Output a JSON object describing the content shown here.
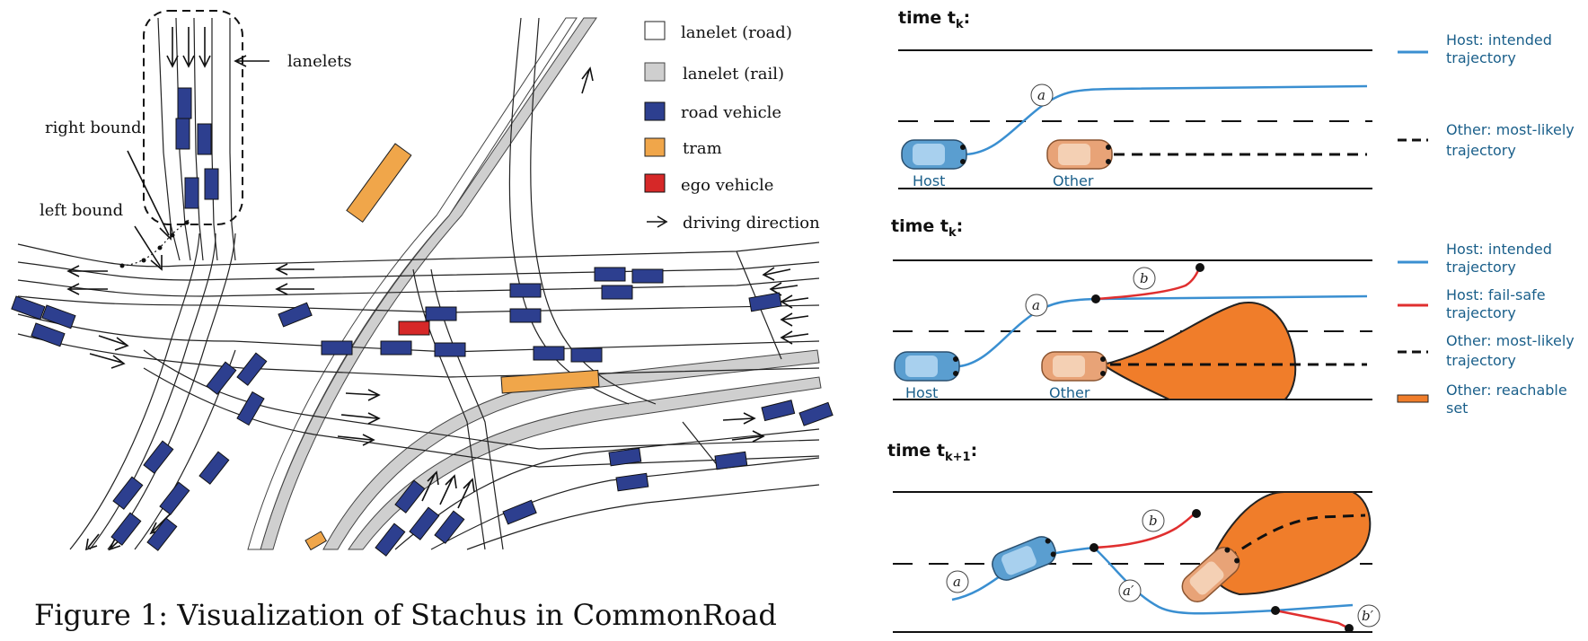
{
  "figure_left": {
    "annotations": {
      "lanelets": "lanelets",
      "right_bound": "right bound",
      "left_bound": "left bound"
    },
    "legend": [
      {
        "label": "lanelet (road)",
        "color": "#ffffff"
      },
      {
        "label": "lanelet (rail)",
        "color": "#cfcfcf"
      },
      {
        "label": "road vehicle",
        "color": "#2d3f8f"
      },
      {
        "label": "tram",
        "color": "#f0a64a"
      },
      {
        "label": "ego vehicle",
        "color": "#d62828"
      },
      {
        "label": "driving direction",
        "icon": "arrow-icon"
      }
    ],
    "caption": "Figure 1: Visualization of Stachus in CommonRoad"
  },
  "figure_right": {
    "panels": [
      {
        "time_label": "time t",
        "subscript": "k"
      },
      {
        "time_label": "time t",
        "subscript": "k"
      },
      {
        "time_label": "time t",
        "subscript": "k+1"
      }
    ],
    "vehicle_labels": {
      "host": "Host",
      "other": "Other"
    },
    "point_labels": {
      "a": "a",
      "b": "b",
      "a_prime": "a′",
      "b_prime": "b′"
    },
    "legend_panel1": [
      {
        "line1": "Host: intended",
        "line2": "trajectory",
        "color": "#3a8fd1",
        "style": "solid"
      },
      {
        "line1": "Other: most-likely",
        "line2": "trajectory",
        "color": "#111111",
        "style": "dashed"
      }
    ],
    "legend_panel2": [
      {
        "line1": "Host: intended",
        "line2": "trajectory",
        "color": "#3a8fd1",
        "style": "solid"
      },
      {
        "line1": "Host: fail-safe",
        "line2": "trajectory",
        "color": "#e02f2f",
        "style": "solid"
      },
      {
        "line1": "Other: most-likely",
        "line2": "trajectory",
        "color": "#111111",
        "style": "dashed"
      },
      {
        "line1": "Other: reachable",
        "line2": "set",
        "color": "#f07d2a",
        "style": "box"
      }
    ]
  }
}
